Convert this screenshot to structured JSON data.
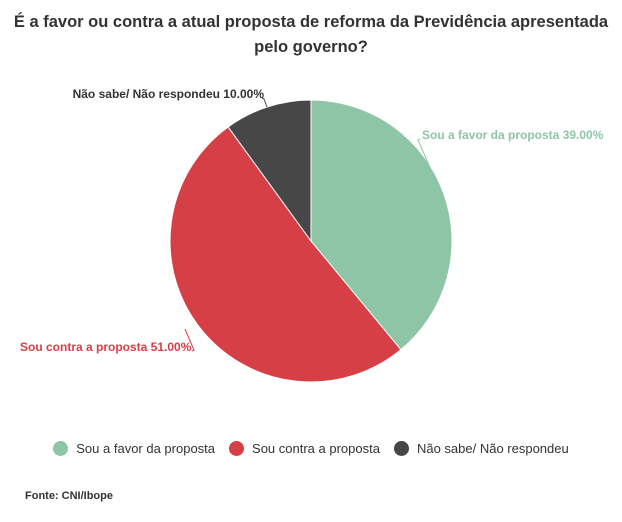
{
  "header": {
    "title_line1": "É a favor ou contra a atual proposta de reforma da Previdência apresentada",
    "title_line2": "pelo governo?"
  },
  "chart_data": {
    "type": "pie",
    "title": "É a favor ou contra a atual proposta de reforma da Previdência apresentada pelo governo?",
    "slices": [
      {
        "name": "Sou a favor da proposta",
        "value": 39.0,
        "label": "Sou a favor da proposta 39.00%",
        "color": "#8ec5a6"
      },
      {
        "name": "Sou contra a proposta",
        "value": 51.0,
        "label": "Sou contra a proposta 51.00%",
        "color": "#d63f46"
      },
      {
        "name": "Não sabe/ Não respondeu",
        "value": 10.0,
        "label": "Não sabe/ Não respondeu 10.00%",
        "color": "#474747"
      }
    ],
    "legend_position": "bottom"
  },
  "legend": {
    "items": [
      {
        "label": "Sou a favor da proposta",
        "color": "#8ec5a6"
      },
      {
        "label": "Sou contra a proposta",
        "color": "#d63f46"
      },
      {
        "label": "Não sabe/ Não respondeu",
        "color": "#474747"
      }
    ]
  },
  "footer": {
    "source": "Fonte: CNI/Ibope"
  }
}
